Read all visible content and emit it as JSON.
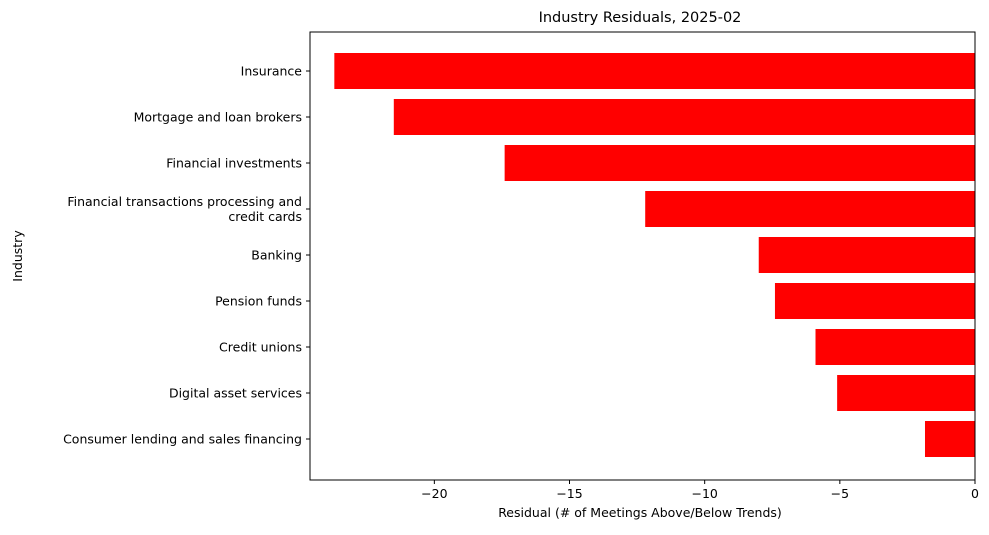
{
  "chart_data": {
    "type": "bar",
    "orientation": "horizontal",
    "title": "Industry Residuals, 2025-02",
    "xlabel": "Residual (# of Meetings Above/Below Trends)",
    "ylabel": "Industry",
    "xlim": [
      -24.6,
      0
    ],
    "xticks": [
      -20,
      -15,
      -10,
      -5,
      0
    ],
    "xtick_labels": [
      "−20",
      "−15",
      "−10",
      "−5",
      "0"
    ],
    "bar_color": "#ff0000",
    "grid": false,
    "categories": [
      "Insurance",
      "Mortgage and loan brokers",
      "Financial investments",
      "Financial transactions processing and\ncredit cards",
      "Banking",
      "Pension funds",
      "Credit unions",
      "Digital asset services",
      "Consumer lending and sales financing"
    ],
    "values": [
      -23.7,
      -21.5,
      -17.4,
      -12.2,
      -8.0,
      -7.4,
      -5.9,
      -5.1,
      -1.85
    ]
  }
}
